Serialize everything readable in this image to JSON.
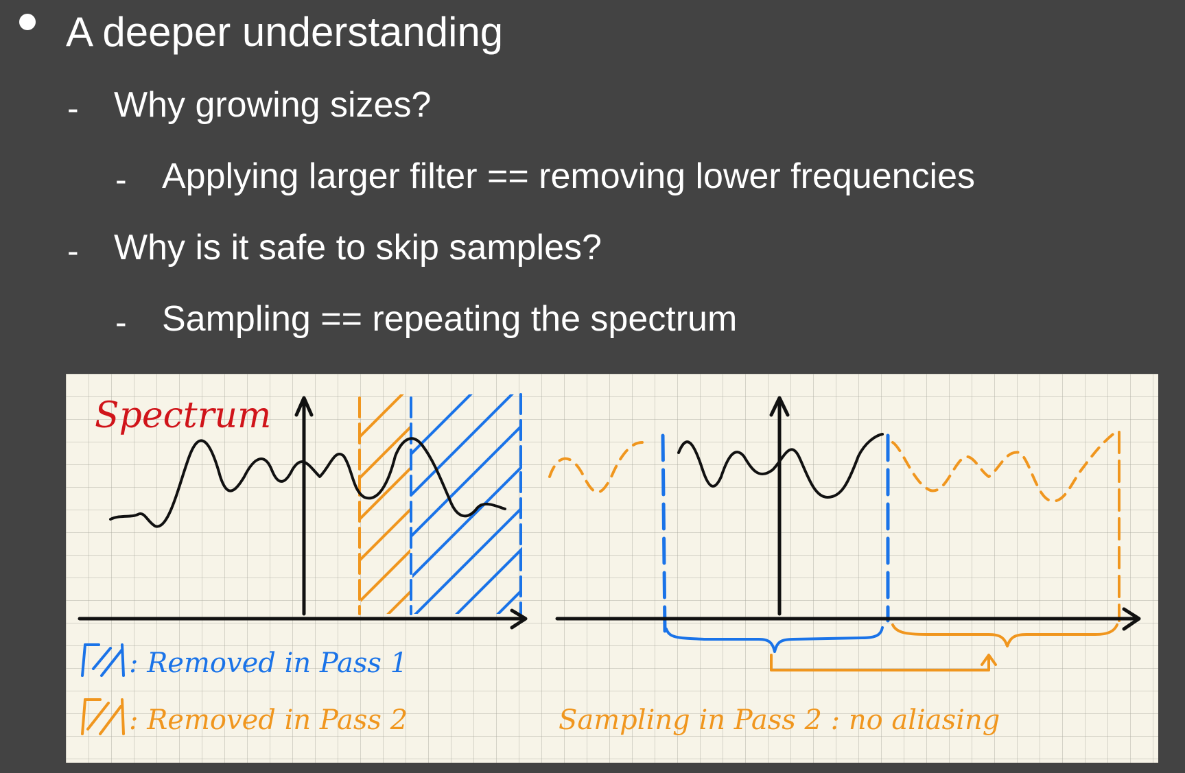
{
  "heading": "A deeper understanding",
  "items": [
    {
      "level": 1,
      "text": "Why growing sizes?"
    },
    {
      "level": 2,
      "text": "Applying larger filter == removing lower frequencies"
    },
    {
      "level": 1,
      "text": "Why is it safe to skip samples?"
    },
    {
      "level": 2,
      "text": "Sampling == repeating the spectrum"
    }
  ],
  "dash_glyph": "-",
  "figure": {
    "title": "Spectrum",
    "legend_pass1": ": Removed in Pass 1",
    "legend_pass2": ": Removed in Pass 2",
    "caption_right": "Sampling in Pass 2 : no aliasing",
    "colors": {
      "background": "#434343",
      "paper": "#f7f4e8",
      "ink": "#111111",
      "title_red": "#d0141a",
      "pass1_blue": "#1a73e8",
      "pass2_orange": "#f0961e"
    }
  }
}
